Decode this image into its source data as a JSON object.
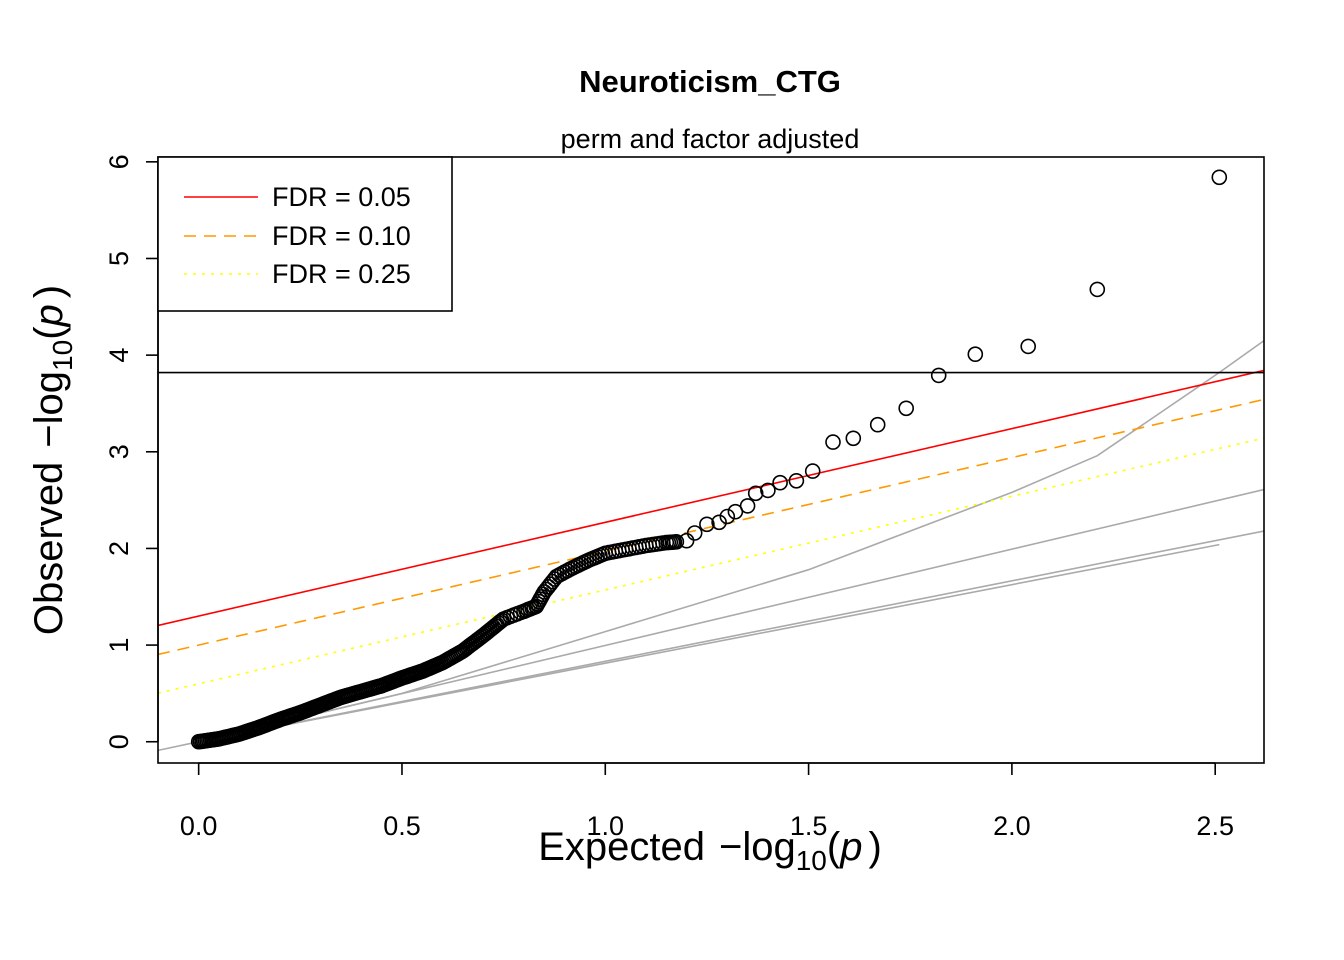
{
  "chart_data": {
    "type": "scatter",
    "title": "Neuroticism_CTG",
    "subtitle": "perm and factor adjusted",
    "xlabel": {
      "prefix": "Expected",
      "minus": "−",
      "log": "log",
      "base": "10",
      "open": "(",
      "var": "p",
      "close": ")"
    },
    "ylabel": {
      "prefix": "Observed",
      "minus": "−",
      "log": "log",
      "base": "10",
      "open": "(",
      "var": "p",
      "close": ")"
    },
    "xlim": [
      -0.1,
      2.62
    ],
    "ylim": [
      -0.22,
      6.05
    ],
    "x_ticks": [
      {
        "value": 0,
        "label": "0.0"
      },
      {
        "value": 0.5,
        "label": "0.5"
      },
      {
        "value": 1.0,
        "label": "1.0"
      },
      {
        "value": 1.5,
        "label": "1.5"
      },
      {
        "value": 2.0,
        "label": "2.0"
      },
      {
        "value": 2.5,
        "label": "2.5"
      }
    ],
    "y_ticks": [
      {
        "value": 0,
        "label": "0"
      },
      {
        "value": 1,
        "label": "1"
      },
      {
        "value": 2,
        "label": "2"
      },
      {
        "value": 3,
        "label": "3"
      },
      {
        "value": 4,
        "label": "4"
      },
      {
        "value": 5,
        "label": "5"
      },
      {
        "value": 6,
        "label": "6"
      }
    ],
    "legend_position": "top-left",
    "legend": [
      {
        "label": "FDR = 0.05",
        "color": "#ff0000",
        "style": "solid"
      },
      {
        "label": "FDR = 0.10",
        "color": "#ff9900",
        "style": "dashed"
      },
      {
        "label": "FDR = 0.25",
        "color": "#ffff00",
        "style": "dotted"
      }
    ],
    "fdr_lines": [
      {
        "name": "FDR = 0.05",
        "intercept": 1.3,
        "slope": 1.0,
        "color": "#ff0000",
        "style": "solid"
      },
      {
        "name": "FDR = 0.10",
        "intercept": 1.0,
        "slope": 1.0,
        "color": "#ff9900",
        "style": "dashed"
      },
      {
        "name": "FDR = 0.25",
        "intercept": 0.6,
        "slope": 1.0,
        "color": "#ffff00",
        "style": "dotted"
      }
    ],
    "threshold_line": {
      "y": 3.82,
      "color": "#000000"
    },
    "reference_lines": [
      {
        "color": "#aaaaaa",
        "points": [
          [
            -0.1,
            -0.09
          ],
          [
            0,
            0
          ],
          [
            0.5,
            0.5
          ],
          [
            1.0,
            1.14
          ],
          [
            1.5,
            1.78
          ],
          [
            2.0,
            2.58
          ],
          [
            2.21,
            2.96
          ],
          [
            2.51,
            3.82
          ],
          [
            2.62,
            4.15
          ]
        ]
      },
      {
        "color": "#aaaaaa",
        "points": [
          [
            0,
            0
          ],
          [
            2.62,
            2.61
          ]
        ]
      },
      {
        "color": "#aaaaaa",
        "points": [
          [
            0,
            0
          ],
          [
            2.62,
            2.61
          ]
        ],
        "note_hidden": ""
      },
      {
        "color": "#aaaaaa",
        "points": [
          [
            0,
            0
          ],
          [
            2.51,
            2.04
          ]
        ]
      }
    ],
    "dense_points": [
      [
        0.0,
        0.0
      ],
      [
        0.05,
        0.03
      ],
      [
        0.1,
        0.08
      ],
      [
        0.15,
        0.15
      ],
      [
        0.2,
        0.23
      ],
      [
        0.25,
        0.3
      ],
      [
        0.3,
        0.38
      ],
      [
        0.35,
        0.46
      ],
      [
        0.4,
        0.52
      ],
      [
        0.45,
        0.58
      ],
      [
        0.5,
        0.66
      ],
      [
        0.55,
        0.73
      ],
      [
        0.6,
        0.82
      ],
      [
        0.65,
        0.94
      ],
      [
        0.7,
        1.1
      ],
      [
        0.75,
        1.27
      ],
      [
        0.8,
        1.35
      ],
      [
        0.83,
        1.4
      ],
      [
        0.85,
        1.55
      ],
      [
        0.88,
        1.71
      ],
      [
        0.92,
        1.8
      ],
      [
        0.96,
        1.88
      ],
      [
        1.0,
        1.95
      ],
      [
        1.05,
        1.99
      ],
      [
        1.1,
        2.03
      ],
      [
        1.15,
        2.06
      ],
      [
        1.18,
        2.07
      ]
    ],
    "points": [
      [
        1.2,
        2.08
      ],
      [
        1.22,
        2.16
      ],
      [
        1.25,
        2.25
      ],
      [
        1.28,
        2.27
      ],
      [
        1.3,
        2.33
      ],
      [
        1.32,
        2.38
      ],
      [
        1.35,
        2.44
      ],
      [
        1.37,
        2.57
      ],
      [
        1.4,
        2.6
      ],
      [
        1.43,
        2.68
      ],
      [
        1.47,
        2.7
      ],
      [
        1.51,
        2.8
      ],
      [
        1.56,
        3.1
      ],
      [
        1.61,
        3.14
      ],
      [
        1.67,
        3.28
      ],
      [
        1.74,
        3.45
      ],
      [
        1.82,
        3.79
      ],
      [
        1.91,
        4.01
      ],
      [
        2.04,
        4.09
      ],
      [
        2.21,
        4.68
      ],
      [
        2.51,
        5.84
      ]
    ]
  }
}
